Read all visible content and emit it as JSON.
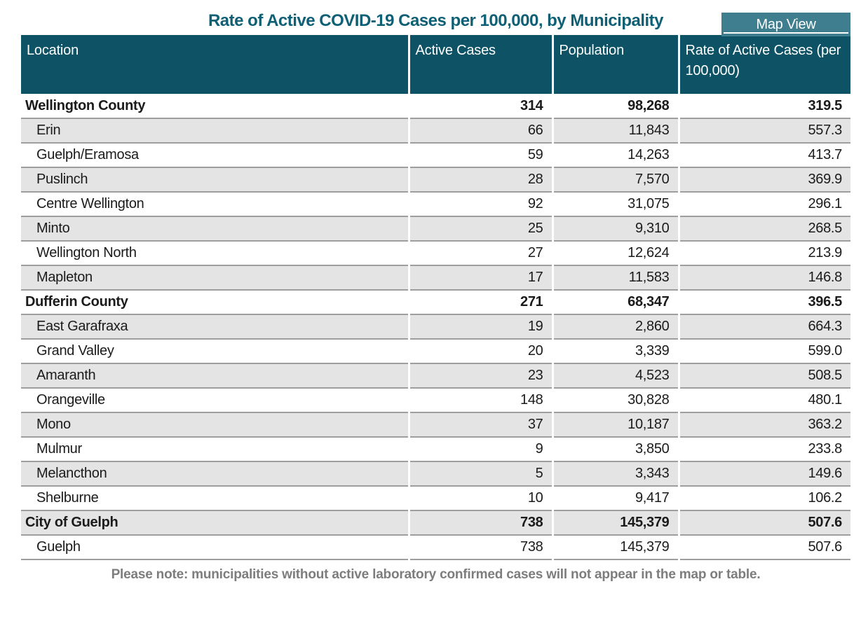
{
  "title": "Rate of Active COVID-19 Cases per 100,000, by Municipality",
  "map_view": {
    "label": "Map View"
  },
  "colors": {
    "header_bg": "#0d5365",
    "button_bg": "#3f7e8e",
    "title_text": "#0f5f75",
    "row_alt_bg": "#e4e4e4",
    "row_border": "#9e9e9e",
    "note_text": "#7d7d7d"
  },
  "table": {
    "columns": [
      "Location",
      "Active Cases",
      "Population",
      "Rate of Active Cases (per 100,000)"
    ],
    "rows": [
      {
        "location": "Wellington County",
        "active_cases": "314",
        "population": "98,268",
        "rate": "319.5",
        "summary": true
      },
      {
        "location": "Erin",
        "active_cases": "66",
        "population": "11,843",
        "rate": "557.3",
        "summary": false
      },
      {
        "location": "Guelph/Eramosa",
        "active_cases": "59",
        "population": "14,263",
        "rate": "413.7",
        "summary": false
      },
      {
        "location": "Puslinch",
        "active_cases": "28",
        "population": "7,570",
        "rate": "369.9",
        "summary": false
      },
      {
        "location": "Centre Wellington",
        "active_cases": "92",
        "population": "31,075",
        "rate": "296.1",
        "summary": false
      },
      {
        "location": "Minto",
        "active_cases": "25",
        "population": "9,310",
        "rate": "268.5",
        "summary": false
      },
      {
        "location": "Wellington North",
        "active_cases": "27",
        "population": "12,624",
        "rate": "213.9",
        "summary": false
      },
      {
        "location": "Mapleton",
        "active_cases": "17",
        "population": "11,583",
        "rate": "146.8",
        "summary": false
      },
      {
        "location": "Dufferin County",
        "active_cases": "271",
        "population": "68,347",
        "rate": "396.5",
        "summary": true
      },
      {
        "location": "East Garafraxa",
        "active_cases": "19",
        "population": "2,860",
        "rate": "664.3",
        "summary": false
      },
      {
        "location": "Grand Valley",
        "active_cases": "20",
        "population": "3,339",
        "rate": "599.0",
        "summary": false
      },
      {
        "location": "Amaranth",
        "active_cases": "23",
        "population": "4,523",
        "rate": "508.5",
        "summary": false
      },
      {
        "location": "Orangeville",
        "active_cases": "148",
        "population": "30,828",
        "rate": "480.1",
        "summary": false
      },
      {
        "location": "Mono",
        "active_cases": "37",
        "population": "10,187",
        "rate": "363.2",
        "summary": false
      },
      {
        "location": "Mulmur",
        "active_cases": "9",
        "population": "3,850",
        "rate": "233.8",
        "summary": false
      },
      {
        "location": "Melancthon",
        "active_cases": "5",
        "population": "3,343",
        "rate": "149.6",
        "summary": false
      },
      {
        "location": "Shelburne",
        "active_cases": "10",
        "population": "9,417",
        "rate": "106.2",
        "summary": false
      },
      {
        "location": "City of Guelph",
        "active_cases": "738",
        "population": "145,379",
        "rate": "507.6",
        "summary": true
      },
      {
        "location": "Guelph",
        "active_cases": "738",
        "population": "145,379",
        "rate": "507.6",
        "summary": false
      }
    ]
  },
  "note": "Please note: municipalities without active laboratory confirmed cases will not appear in the map or table."
}
